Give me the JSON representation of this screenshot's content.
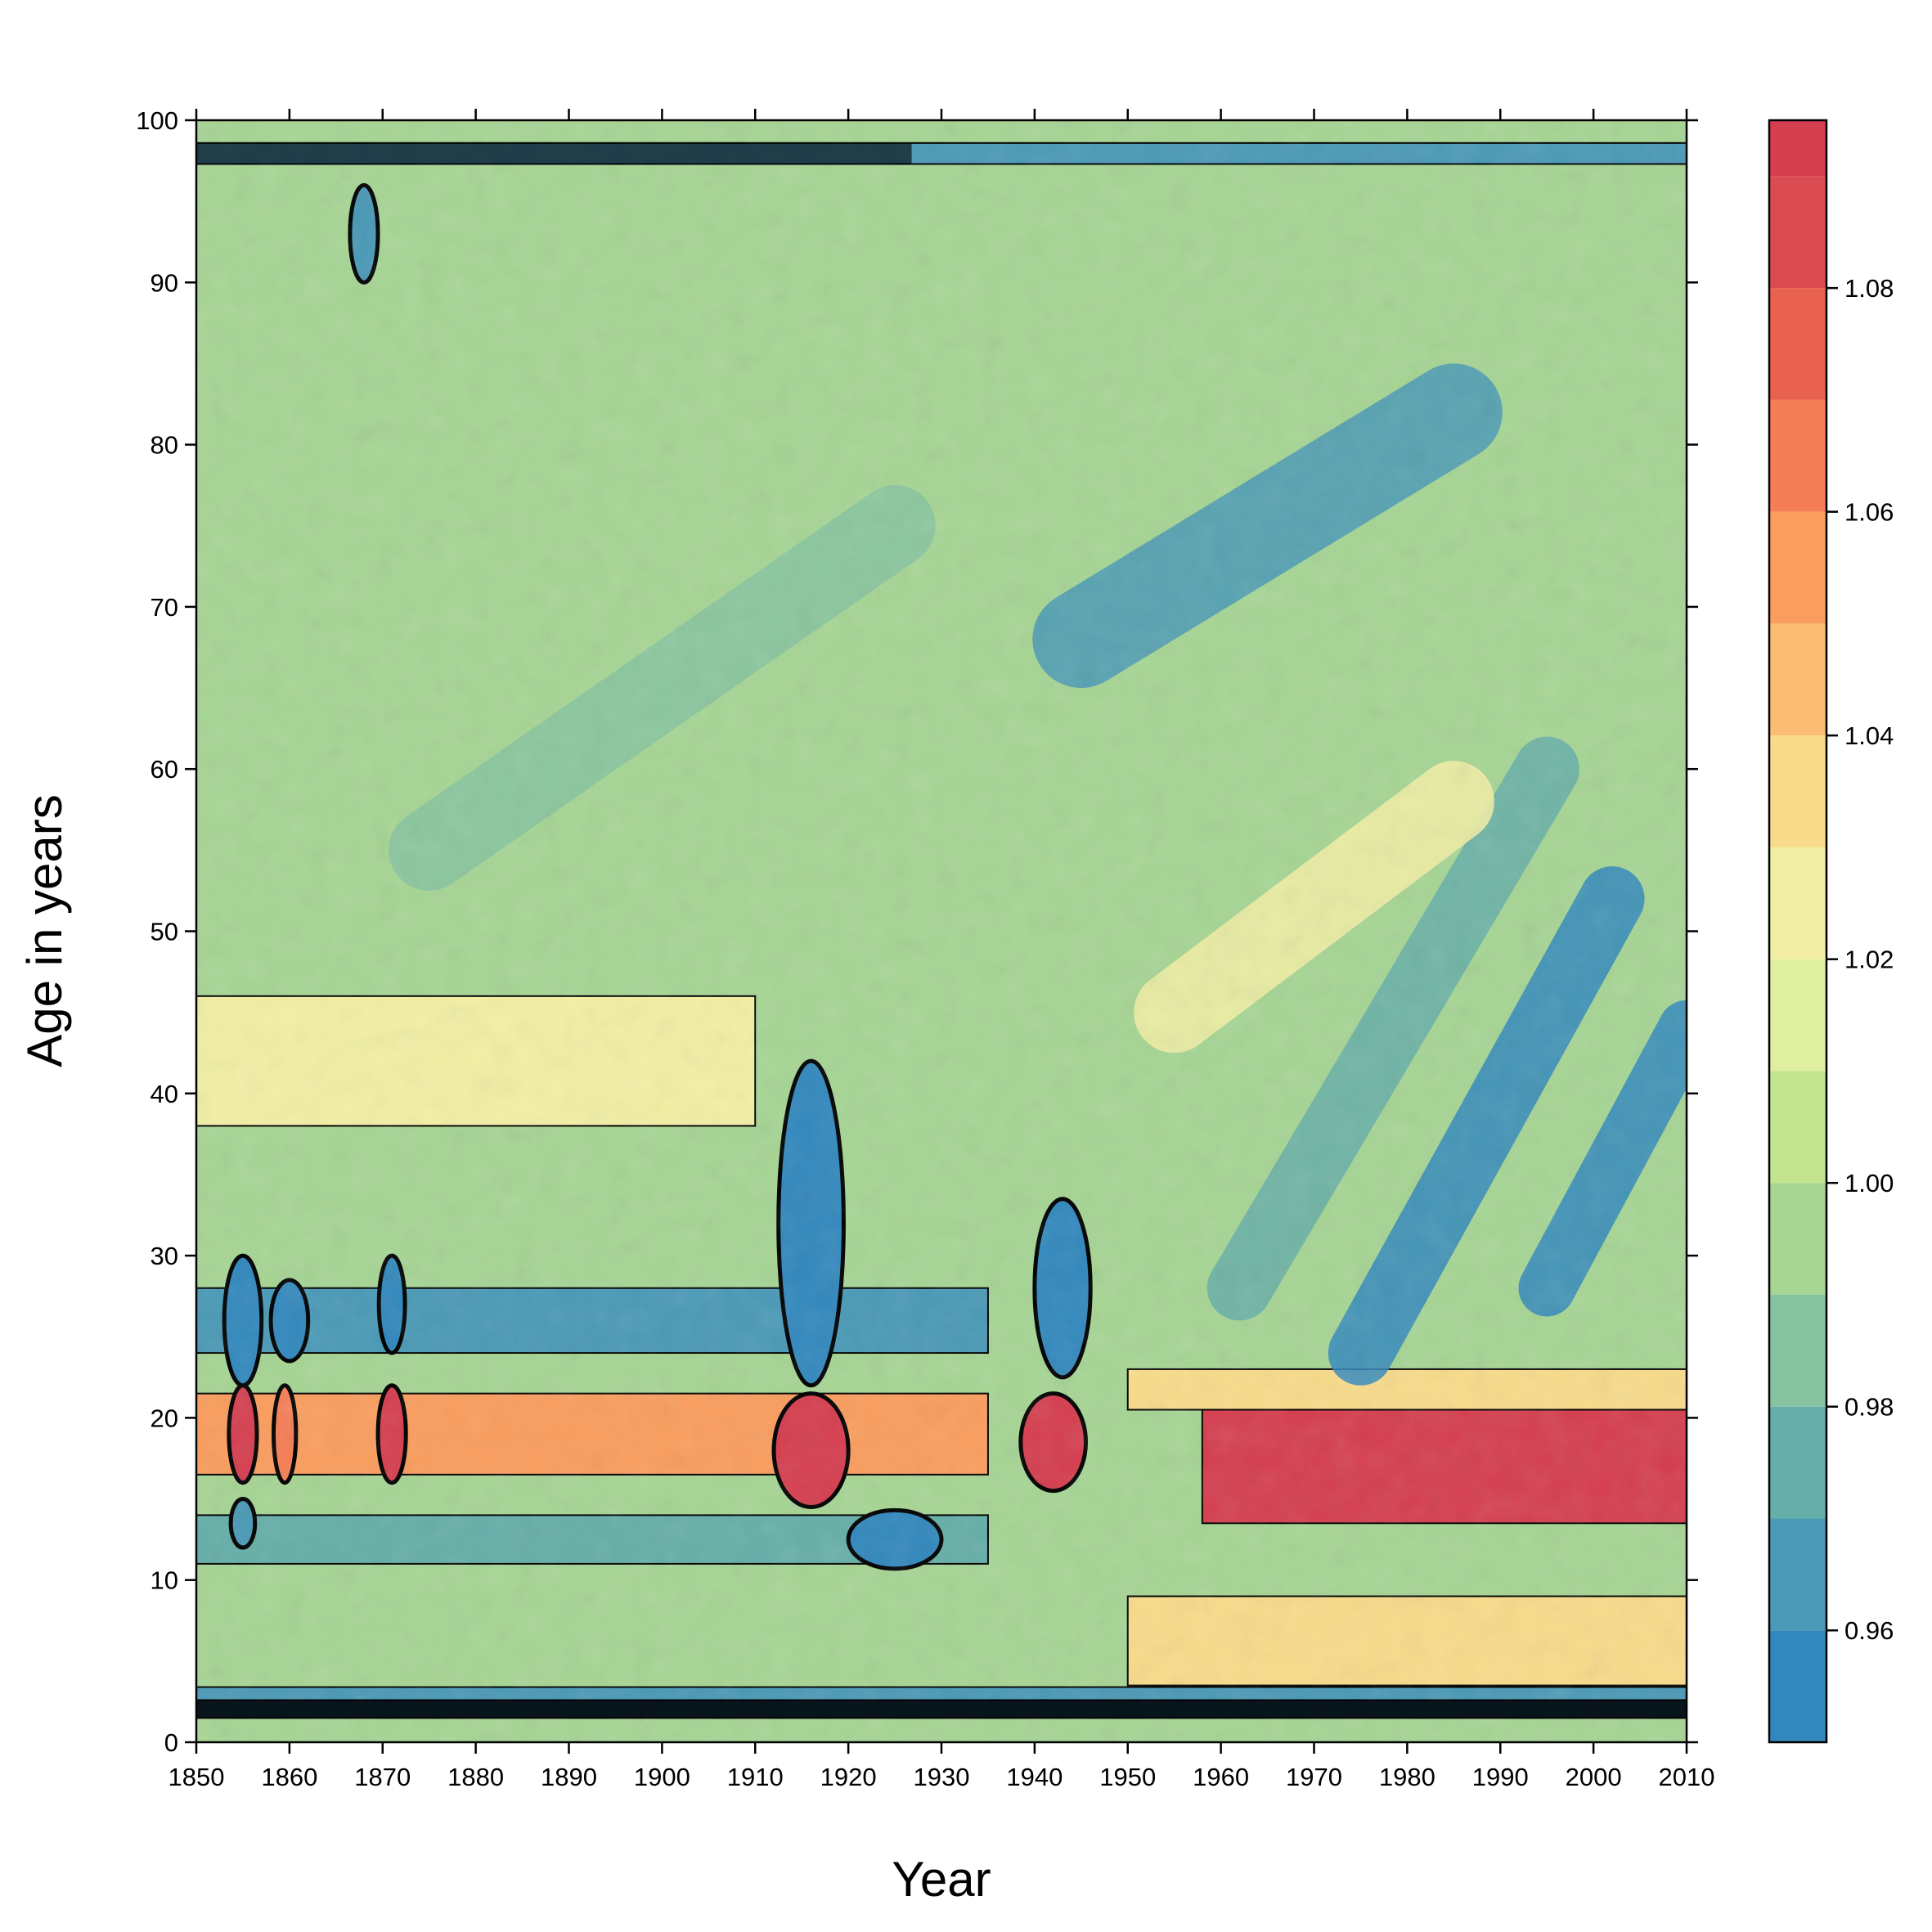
{
  "chart_data": {
    "type": "heatmap",
    "subtype": "filled-contour",
    "title": "",
    "xlabel": "Year",
    "ylabel": "Age in years",
    "xlim": [
      1850,
      2010
    ],
    "ylim": [
      0,
      100
    ],
    "x_ticks": [
      "1850",
      "1860",
      "1870",
      "1880",
      "1890",
      "1900",
      "1910",
      "1920",
      "1930",
      "1940",
      "1950",
      "1960",
      "1970",
      "1980",
      "1990",
      "2000",
      "2010"
    ],
    "y_ticks": [
      "0",
      "10",
      "20",
      "30",
      "40",
      "50",
      "60",
      "70",
      "80",
      "90",
      "100"
    ],
    "colorbar": {
      "range": [
        0.95,
        1.095
      ],
      "tick_labels": [
        "0.96",
        "0.98",
        "1.00",
        "1.02",
        "1.04",
        "1.06",
        "1.08"
      ],
      "levels": [
        0.95,
        0.96,
        0.97,
        0.98,
        0.99,
        1.0,
        1.01,
        1.02,
        1.03,
        1.04,
        1.05,
        1.06,
        1.07,
        1.08,
        1.09,
        1.095
      ],
      "colors": [
        "#3288bd",
        "#4a99b6",
        "#66aea8",
        "#86c3a0",
        "#a6d594",
        "#c4e58f",
        "#e0eea0",
        "#f2efa4",
        "#f8db8a",
        "#fbbd74",
        "#fa9d5e",
        "#f47e55",
        "#e8624f",
        "#db4c52",
        "#d53e4f"
      ]
    },
    "background_value": 0.995,
    "features": [
      {
        "kind": "band",
        "x": [
          1850,
          2010
        ],
        "y": [
          0,
          1.5
        ],
        "value": 0.995
      },
      {
        "kind": "band",
        "x": [
          1850,
          2010
        ],
        "y": [
          1.5,
          2.6
        ],
        "value": 0.95
      },
      {
        "kind": "band",
        "x": [
          1850,
          2010
        ],
        "y": [
          2.6,
          3.4
        ],
        "value": 0.968
      },
      {
        "kind": "band",
        "x": [
          1850,
          2010
        ],
        "y": [
          97.3,
          98.6
        ],
        "value": 0.96
      },
      {
        "kind": "band",
        "x": [
          1850,
          2010
        ],
        "y": [
          98.6,
          100
        ],
        "value": 0.995
      },
      {
        "kind": "band",
        "x": [
          1850,
          1935
        ],
        "y": [
          24,
          28
        ],
        "value": 0.968
      },
      {
        "kind": "band",
        "x": [
          1850,
          1935
        ],
        "y": [
          11,
          14
        ],
        "value": 0.972
      },
      {
        "kind": "band",
        "x": [
          1850,
          1935
        ],
        "y": [
          16.5,
          21.5
        ],
        "value": 1.055
      },
      {
        "kind": "band",
        "x": [
          1850,
          1910
        ],
        "y": [
          38,
          46
        ],
        "value": 1.025
      },
      {
        "kind": "band",
        "x": [
          1950,
          2010
        ],
        "y": [
          20.5,
          23
        ],
        "value": 1.03
      },
      {
        "kind": "band",
        "x": [
          1958,
          2010
        ],
        "y": [
          13.5,
          20.5
        ],
        "value": 1.09
      },
      {
        "kind": "band",
        "x": [
          1950,
          2010
        ],
        "y": [
          3.5,
          9
        ],
        "value": 1.03
      },
      {
        "kind": "blob",
        "x": 1855,
        "y": 19,
        "rx": 1.5,
        "ry": 3,
        "value": 1.095
      },
      {
        "kind": "blob",
        "x": 1859.5,
        "y": 19,
        "rx": 1.2,
        "ry": 3,
        "value": 1.06
      },
      {
        "kind": "blob",
        "x": 1871,
        "y": 19,
        "rx": 1.5,
        "ry": 3,
        "value": 1.095
      },
      {
        "kind": "blob",
        "x": 1855,
        "y": 26,
        "rx": 2,
        "ry": 4,
        "value": 0.95
      },
      {
        "kind": "blob",
        "x": 1860,
        "y": 26,
        "rx": 2,
        "ry": 2.5,
        "value": 0.955
      },
      {
        "kind": "blob",
        "x": 1871,
        "y": 27,
        "rx": 1.4,
        "ry": 3,
        "value": 0.955
      },
      {
        "kind": "blob",
        "x": 1855,
        "y": 13.5,
        "rx": 1.3,
        "ry": 1.5,
        "value": 0.96
      },
      {
        "kind": "blob",
        "x": 1916,
        "y": 18,
        "rx": 4,
        "ry": 3.5,
        "value": 1.095
      },
      {
        "kind": "blob",
        "x": 1916,
        "y": 32,
        "rx": 3.5,
        "ry": 10,
        "value": 0.95
      },
      {
        "kind": "blob",
        "x": 1942,
        "y": 18.5,
        "rx": 3.5,
        "ry": 3,
        "value": 1.095
      },
      {
        "kind": "blob",
        "x": 1943,
        "y": 28,
        "rx": 3,
        "ry": 5.5,
        "value": 0.95
      },
      {
        "kind": "blob",
        "x": 1925,
        "y": 12.5,
        "rx": 5,
        "ry": 1.8,
        "value": 0.955
      },
      {
        "kind": "blob",
        "x": 1868,
        "y": 93,
        "rx": 1.5,
        "ry": 3,
        "value": 0.96
      },
      {
        "kind": "diagonal",
        "x0": 1945,
        "y0": 68,
        "x1": 1985,
        "y1": 82,
        "width": 6,
        "value": 0.965
      },
      {
        "kind": "diagonal",
        "x0": 1975,
        "y0": 24,
        "x1": 2002,
        "y1": 52,
        "width": 4,
        "value": 0.955
      },
      {
        "kind": "diagonal",
        "x0": 1962,
        "y0": 28,
        "x1": 1995,
        "y1": 60,
        "width": 4,
        "value": 0.975
      },
      {
        "kind": "diagonal",
        "x0": 1995,
        "y0": 28,
        "x1": 2010,
        "y1": 44,
        "width": 3.5,
        "value": 0.955
      },
      {
        "kind": "diagonal",
        "x0": 1875,
        "y0": 55,
        "x1": 1925,
        "y1": 75,
        "width": 5,
        "value": 0.98
      },
      {
        "kind": "diagonal",
        "x0": 1955,
        "y0": 45,
        "x1": 1985,
        "y1": 58,
        "width": 5,
        "value": 1.025
      }
    ]
  }
}
